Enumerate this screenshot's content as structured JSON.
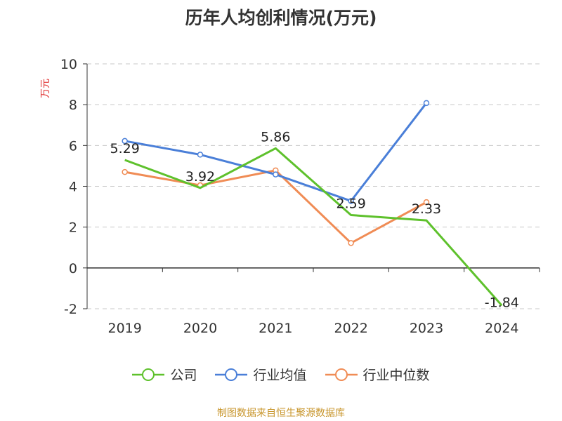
{
  "chart_data": {
    "type": "line",
    "title": "历年人均创利情况(万元)",
    "ylabel": "万元",
    "xlabel": "",
    "categories": [
      "2019",
      "2020",
      "2021",
      "2022",
      "2023",
      "2024"
    ],
    "y_ticks": [
      "10",
      "8",
      "6",
      "4",
      "2",
      "0",
      "-2"
    ],
    "ylim": [
      -2,
      10
    ],
    "grid": true,
    "legend_position": "bottom",
    "series": [
      {
        "name": "公司",
        "color": "#5ec12c",
        "values": [
          5.29,
          3.92,
          5.86,
          2.59,
          2.33,
          -1.84
        ],
        "data_labels": [
          "5.29",
          "3.92",
          "5.86",
          "2.59",
          "2.33",
          "-1.84"
        ]
      },
      {
        "name": "行业均值",
        "color": "#4a7fd8",
        "values": [
          6.22,
          5.55,
          4.58,
          3.28,
          8.08,
          null
        ]
      },
      {
        "name": "行业中位数",
        "color": "#f08c55",
        "values": [
          4.7,
          4.05,
          4.78,
          1.22,
          3.22,
          null
        ]
      }
    ]
  },
  "footer": {
    "source": "制图数据来自恒生聚源数据库"
  }
}
